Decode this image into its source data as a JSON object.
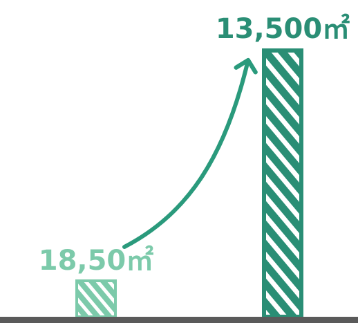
{
  "chart_data": {
    "type": "bar",
    "categories": [
      "",
      ""
    ],
    "values": [
      18.5,
      13500
    ],
    "data_labels": [
      "18,50㎡",
      "13,500㎡"
    ],
    "title": "",
    "xlabel": "",
    "ylabel": "",
    "unit": "㎡",
    "grid": false,
    "legend": "none",
    "annotations": [
      {
        "type": "arrow",
        "from_category_index": 0,
        "to_category_index": 1
      }
    ]
  },
  "colors": {
    "small_bar": "#7ccaaa",
    "large_bar": "#2a8e75",
    "stripe": "#ffffff",
    "arrow": "#2a9a7c",
    "baseline": "#5a5a5a",
    "background": "#ffffff"
  }
}
